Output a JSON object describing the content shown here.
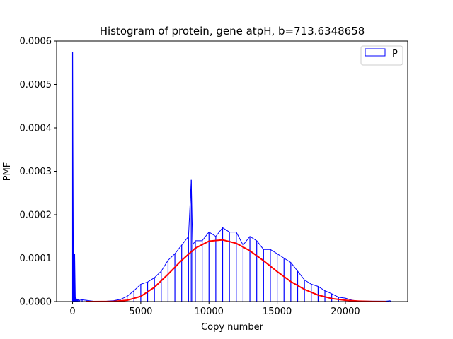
{
  "chart_data": {
    "type": "area",
    "title": "Histogram of protein, gene atpH, b=713.6348658",
    "xlabel": "Copy number",
    "ylabel": "PMF",
    "xlim": [
      -1170,
      24570
    ],
    "ylim": [
      0,
      0.0006
    ],
    "x_ticks": [
      0,
      5000,
      10000,
      15000,
      20000
    ],
    "x_tick_labels": [
      "0",
      "5000",
      "10000",
      "15000",
      "20000"
    ],
    "y_ticks": [
      0,
      0.0001,
      0.0002,
      0.0003,
      0.0004,
      0.0005,
      0.0006
    ],
    "y_tick_labels": [
      "0.0000",
      "0.0001",
      "0.0002",
      "0.0003",
      "0.0004",
      "0.0005",
      "0.0006"
    ],
    "grid": false,
    "legend": {
      "placement": "top-right",
      "entries": [
        {
          "label": "P",
          "color": "#0000ff",
          "style": "outlined-box"
        }
      ]
    },
    "series": [
      {
        "name": "P",
        "kind": "histogram",
        "color": "#0000ff",
        "x": [
          0,
          50,
          100,
          150,
          200,
          250,
          300,
          350,
          400,
          500,
          700,
          1000,
          1500,
          2000,
          2500,
          3000,
          3500,
          4000,
          4500,
          5000,
          5500,
          6000,
          6500,
          7000,
          7500,
          8000,
          8500,
          8700,
          8800,
          9000,
          9500,
          10000,
          10500,
          11000,
          11500,
          12000,
          12500,
          13000,
          13500,
          14000,
          14500,
          15000,
          15500,
          16000,
          16500,
          17000,
          17500,
          18000,
          18500,
          19000,
          19500,
          20000,
          20500,
          21000,
          22000,
          23000,
          23300
        ],
        "y": [
          0.000575,
          0.000148,
          3e-05,
          0.00011,
          1e-05,
          5e-06,
          6e-06,
          4e-06,
          5e-06,
          3e-06,
          4e-06,
          3e-06,
          1e-06,
          5e-07,
          1e-06,
          2e-06,
          5e-06,
          1.2e-05,
          2.5e-05,
          4e-05,
          4.5e-05,
          5.5e-05,
          7e-05,
          9.5e-05,
          0.00011,
          0.00013,
          0.00015,
          0.00028,
          0.00013,
          0.00014,
          0.00014,
          0.00016,
          0.00015,
          0.00017,
          0.00016,
          0.00016,
          0.00013,
          0.00015,
          0.00014,
          0.00012,
          0.00012,
          0.00011,
          0.0001,
          9e-05,
          7e-05,
          5e-05,
          4e-05,
          3.5e-05,
          2.5e-05,
          1.8e-05,
          1e-05,
          8e-06,
          3e-06,
          1e-06,
          1e-06,
          1e-06,
          2e-06
        ]
      },
      {
        "kind": "fit-curve",
        "color": "#ff0000",
        "x": [
          1000,
          3000,
          4000,
          5000,
          6000,
          7000,
          8000,
          9000,
          10000,
          11000,
          12000,
          13000,
          14000,
          15000,
          16000,
          17000,
          18000,
          19000,
          20000,
          21000,
          22000,
          23000
        ],
        "y": [
          0,
          5e-07,
          3e-06,
          1.2e-05,
          3.3e-05,
          6.3e-05,
          9.5e-05,
          0.000123,
          0.000139,
          0.000142,
          0.000134,
          0.000117,
          9.4e-05,
          6.9e-05,
          4.6e-05,
          2.8e-05,
          1.5e-05,
          7e-06,
          3e-06,
          1e-06,
          2e-07,
          0
        ]
      }
    ]
  }
}
